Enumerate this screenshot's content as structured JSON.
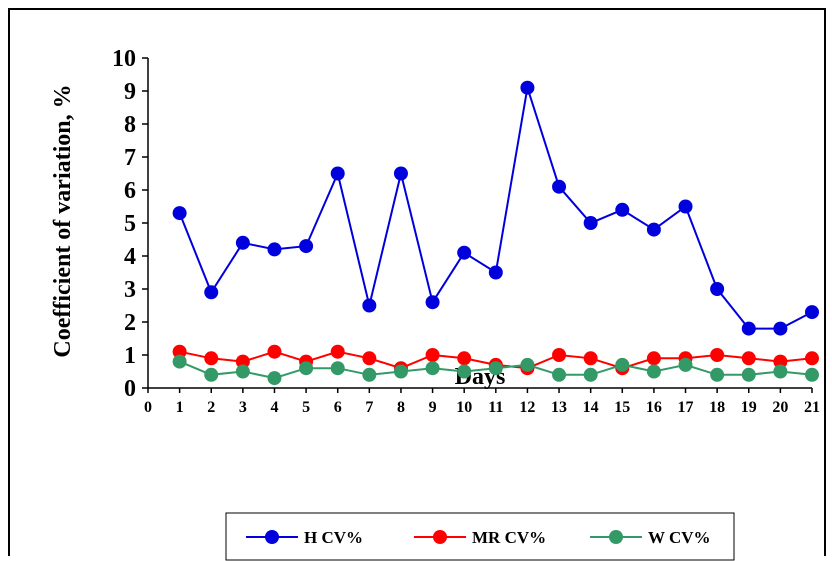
{
  "chart_data": {
    "type": "line",
    "title": "",
    "xlabel": "Days",
    "ylabel": "Coefficient of variation, %",
    "xlim": [
      0,
      21
    ],
    "ylim": [
      0,
      10
    ],
    "x_ticks": [
      0,
      1,
      2,
      3,
      4,
      5,
      6,
      7,
      8,
      9,
      10,
      11,
      12,
      13,
      14,
      15,
      16,
      17,
      18,
      19,
      20,
      21
    ],
    "y_ticks": [
      0,
      1,
      2,
      3,
      4,
      5,
      6,
      7,
      8,
      9,
      10
    ],
    "grid": false,
    "legend_position": "bottom",
    "x": [
      1,
      2,
      3,
      4,
      5,
      6,
      7,
      8,
      9,
      10,
      11,
      12,
      13,
      14,
      15,
      16,
      17,
      18,
      19,
      20,
      21
    ],
    "series": [
      {
        "name": "H CV%",
        "color": "#0000dd",
        "values": [
          5.3,
          2.9,
          4.4,
          4.2,
          4.3,
          6.5,
          2.5,
          6.5,
          2.6,
          4.1,
          3.5,
          9.1,
          6.1,
          5.0,
          5.4,
          4.8,
          5.5,
          3.0,
          1.8,
          1.8,
          2.3
        ]
      },
      {
        "name": "MR CV%",
        "color": "#ff0000",
        "values": [
          1.1,
          0.9,
          0.8,
          1.1,
          0.8,
          1.1,
          0.9,
          0.6,
          1.0,
          0.9,
          0.7,
          0.6,
          1.0,
          0.9,
          0.6,
          0.9,
          0.9,
          1.0,
          0.9,
          0.8,
          0.9
        ]
      },
      {
        "name": "W CV%",
        "color": "#339966",
        "values": [
          0.8,
          0.4,
          0.5,
          0.3,
          0.6,
          0.6,
          0.4,
          0.5,
          0.6,
          0.5,
          0.6,
          0.7,
          0.4,
          0.4,
          0.7,
          0.5,
          0.7,
          0.4,
          0.4,
          0.5,
          0.4
        ]
      }
    ]
  }
}
